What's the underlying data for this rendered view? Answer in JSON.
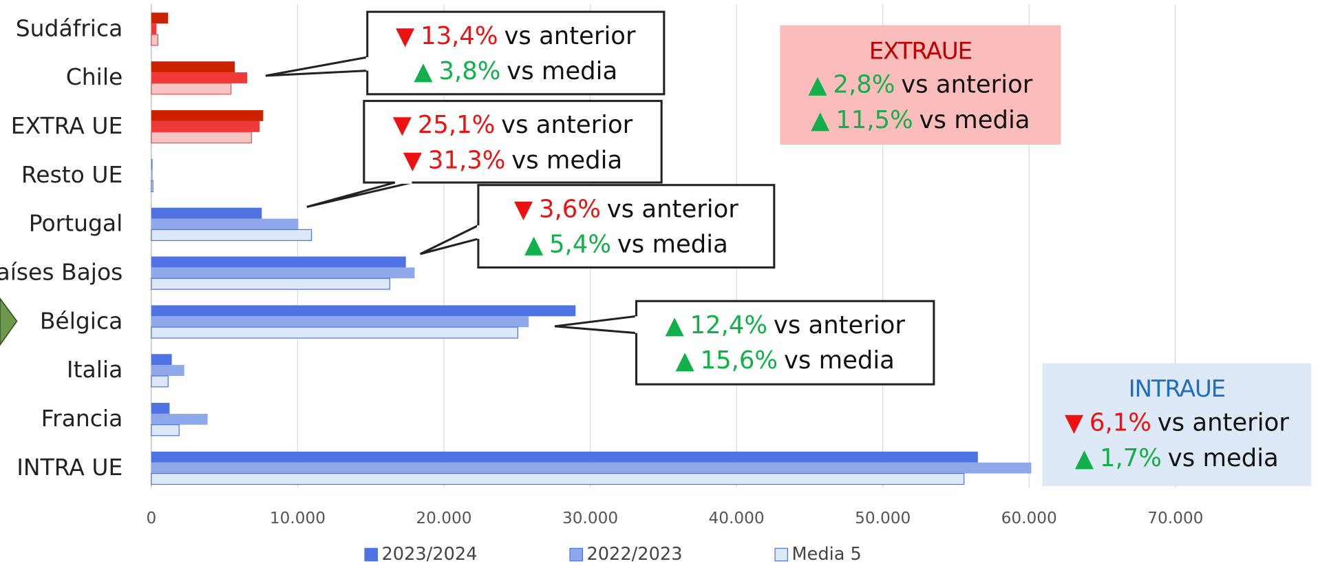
{
  "chart_data": {
    "type": "hbar",
    "categories": [
      "Sudáfrica",
      "Chile",
      "EXTRA UE",
      "Resto UE",
      "Portugal",
      "Países Bajos",
      "Bélgica",
      "Italia",
      "Francia",
      "INTRA UE"
    ],
    "series": [
      {
        "name": "2023/2024",
        "color": "#4f73e3",
        "colors": [
          "#cc2200",
          "#cc2200",
          "#cc2200",
          "#4f73e3",
          "#4f73e3",
          "#4f73e3",
          "#4f73e3",
          "#4f73e3",
          "#4f73e3",
          "#4f73e3"
        ],
        "values": [
          1150,
          5700,
          7650,
          80,
          7550,
          17400,
          29000,
          1400,
          1250,
          56500
        ]
      },
      {
        "name": "2022/2023",
        "color": "#8ea8ea",
        "colors": [
          "#f03a3a",
          "#f03a3a",
          "#f03a3a",
          "#8ea8ea",
          "#8ea8ea",
          "#8ea8ea",
          "#8ea8ea",
          "#8ea8ea",
          "#8ea8ea",
          "#8ea8ea"
        ],
        "values": [
          350,
          6550,
          7400,
          90,
          10050,
          18000,
          25800,
          2250,
          3850,
          60150
        ]
      },
      {
        "name": "Media 5",
        "color": "#dde8f8",
        "colors": [
          "#f8c4c4",
          "#f8c4c4",
          "#f8c4c4",
          "#dde8f8",
          "#dde8f8",
          "#dde8f8",
          "#dde8f8",
          "#dde8f8",
          "#dde8f8",
          "#dde8f8"
        ],
        "values": [
          450,
          5450,
          6850,
          110,
          10950,
          16300,
          25050,
          1150,
          1900,
          55550
        ]
      }
    ],
    "xlim": [
      0,
      79000
    ],
    "xticks": [
      0,
      {
        "value": 10000,
        "label": "10.000"
      },
      {
        "value": 20000,
        "label": "20.000"
      },
      {
        "value": 30000,
        "label": "30.000"
      },
      {
        "value": 40000,
        "label": "40.000"
      },
      {
        "value": 50000,
        "label": "50.000"
      },
      {
        "value": 60000,
        "label": "60.000"
      },
      {
        "value": 70000,
        "label": "70.000"
      }
    ],
    "grid": true,
    "legend": "bottom",
    "annotations": [
      {
        "lines": [
          {
            "symbol": "▼",
            "value": "13,4%",
            "text": "vs anterior"
          },
          {
            "symbol": "▲",
            "value": "3,8%",
            "text": "vs media"
          }
        ]
      },
      {
        "lines": [
          {
            "symbol": "▼",
            "value": "25,1%",
            "text": "vs anterior"
          },
          {
            "symbol": "▼",
            "value": "31,3%",
            "text": "vs media"
          }
        ]
      },
      {
        "lines": [
          {
            "symbol": "▼",
            "value": "3,6%",
            "text": "vs anterior"
          },
          {
            "symbol": "▲",
            "value": "5,4%",
            "text": "vs media"
          }
        ]
      },
      {
        "lines": [
          {
            "symbol": "▲",
            "value": "12,4%",
            "text": "vs anterior"
          },
          {
            "symbol": "▲",
            "value": "15,6%",
            "text": "vs media"
          }
        ]
      }
    ],
    "summaries": [
      {
        "title": "EXTRAUE",
        "lines": [
          {
            "symbol": "▲",
            "value": "2,8%",
            "text": "vs anterior"
          },
          {
            "symbol": "▲",
            "value": "11,5%",
            "text": "vs media"
          }
        ]
      },
      {
        "title": "INTRAUE",
        "lines": [
          {
            "symbol": "▼",
            "value": "6,1%",
            "text": "vs anterior"
          },
          {
            "symbol": "▲",
            "value": "1,7%",
            "text": "vs media"
          }
        ]
      }
    ]
  }
}
